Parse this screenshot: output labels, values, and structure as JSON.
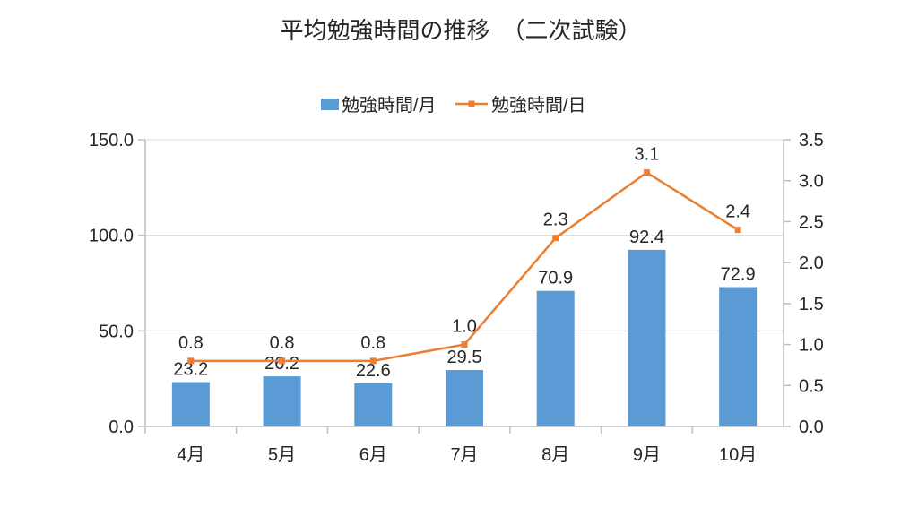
{
  "chart_data": {
    "type": "bar",
    "subtype": "combo-bar-line",
    "title": "平均勉強時間の推移　（二次試験）",
    "categories": [
      "4月",
      "5月",
      "6月",
      "7月",
      "8月",
      "9月",
      "10月"
    ],
    "series": [
      {
        "name": "勉強時間/月",
        "type": "bar",
        "axis": "left",
        "color": "#5B9BD5",
        "values": [
          23.2,
          26.2,
          22.6,
          29.5,
          70.9,
          92.4,
          72.9
        ],
        "labels": [
          "23.2",
          "26.2",
          "22.6",
          "29.5",
          "70.9",
          "92.4",
          "72.9"
        ]
      },
      {
        "name": "勉強時間/日",
        "type": "line",
        "axis": "right",
        "color": "#ED7D31",
        "values": [
          0.8,
          0.8,
          0.8,
          1.0,
          2.3,
          3.1,
          2.4
        ],
        "labels": [
          "0.8",
          "0.8",
          "0.8",
          "1.0",
          "2.3",
          "3.1",
          "2.4"
        ]
      }
    ],
    "axes": {
      "left": {
        "min": 0,
        "max": 150,
        "step": 50,
        "tick_labels": [
          "0.0",
          "50.0",
          "100.0",
          "150.0"
        ]
      },
      "right": {
        "min": 0,
        "max": 3.5,
        "step": 0.5,
        "tick_labels": [
          "0.0",
          "0.5",
          "1.0",
          "1.5",
          "2.0",
          "2.5",
          "3.0",
          "3.5"
        ]
      }
    },
    "grid": true,
    "legend_position": "top",
    "colors": {
      "gridline": "#D9D9D9",
      "axis_line": "#BFBFBF",
      "text": "#262626",
      "background": "#FFFFFF"
    }
  }
}
